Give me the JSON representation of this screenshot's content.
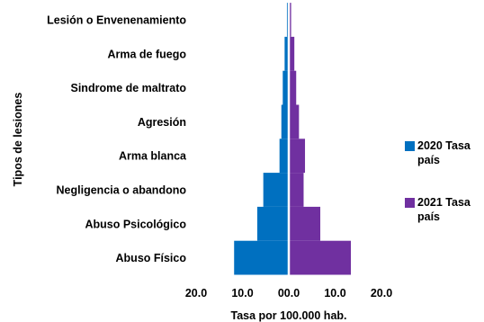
{
  "chart_data": {
    "type": "bar",
    "orientation": "horizontal-butterfly",
    "title": "",
    "xlabel": "Tasa por 100.000 hab.",
    "ylabel": "Tipos de lesiones",
    "categories": [
      "Lesión o Envenenamiento",
      "Arma de fuego",
      "Sindrome de maltrato",
      "Agresión",
      "Arma blanca",
      "Negligencia o abandono",
      "Abuso Psicológico",
      "Abuso Físico"
    ],
    "series": [
      {
        "name": "2020 Tasa país",
        "color": "#0070C0",
        "direction": "left",
        "values": [
          0.4,
          0.9,
          1.3,
          1.6,
          2.0,
          5.5,
          6.8,
          11.8
        ]
      },
      {
        "name": "2021 Tasa país",
        "color": "#7030A0",
        "direction": "right",
        "values": [
          0.5,
          1.2,
          1.6,
          2.2,
          3.5,
          3.2,
          6.8,
          13.4
        ]
      }
    ],
    "xlim": [
      -20,
      20
    ],
    "x_tick_labels": [
      "20.0",
      "10.0",
      "00.0",
      "10.0",
      "20.0"
    ],
    "grid": false,
    "legend_position": "right"
  }
}
